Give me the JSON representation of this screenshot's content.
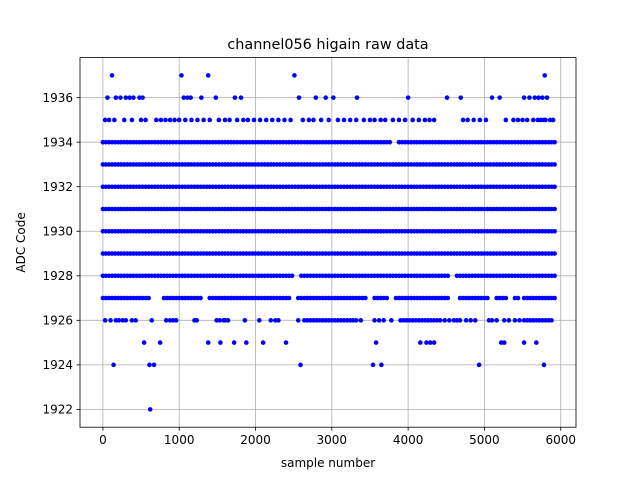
{
  "chart_data": {
    "type": "scatter",
    "title": "channel056 higain raw data",
    "xlabel": "sample number",
    "ylabel": "ADC Code",
    "xlim": [
      -300,
      6200
    ],
    "ylim": [
      1921.2,
      1937.8
    ],
    "x_ticks": [
      0,
      1000,
      2000,
      3000,
      4000,
      5000,
      6000
    ],
    "y_ticks": [
      1922,
      1924,
      1926,
      1928,
      1930,
      1932,
      1934,
      1936
    ],
    "grid": true,
    "marker_color": "#0000ff",
    "n_samples": 5925,
    "series": [
      {
        "values_by_level": {
          "1937": [
            120,
            1030,
            1380,
            2510,
            5790
          ],
          "1936": [
            60,
            170,
            230,
            300,
            350,
            400,
            480,
            520,
            1060,
            1110,
            1150,
            1290,
            1480,
            1730,
            1810,
            2570,
            2790,
            2920,
            3020,
            3330,
            4000,
            4510,
            4690,
            5100,
            5200,
            5520,
            5590,
            5660,
            5710,
            5760,
            5820
          ],
          "1935": [
            30,
            80,
            150,
            280,
            380,
            500,
            560,
            700,
            760,
            820,
            880,
            940,
            1000,
            1080,
            1160,
            1240,
            1320,
            1400,
            1520,
            1600,
            1660,
            1760,
            1840,
            1900,
            1980,
            2060,
            2140,
            2220,
            2300,
            2380,
            2460,
            2620,
            2700,
            2760,
            2860,
            2960,
            3080,
            3160,
            3240,
            3320,
            3420,
            3500,
            3560,
            3640,
            3700,
            3800,
            3880,
            3960,
            4060,
            4140,
            4220,
            4280,
            4340,
            4720,
            4780,
            4860,
            4940,
            5020,
            5280,
            5380,
            5440,
            5500,
            5560,
            5640,
            5700,
            5740,
            5780,
            5800,
            5860,
            5900
          ],
          "1926": [
            30,
            100,
            170,
            210,
            260,
            300,
            380,
            430,
            640,
            830,
            880,
            920,
            960,
            1200,
            1230,
            1490,
            1530,
            1580,
            1600,
            1640,
            1860,
            2050,
            2200,
            2260,
            2300,
            2560,
            2640,
            2680,
            2720,
            2760,
            2800,
            2840,
            2880,
            2920,
            2960,
            3000,
            3040,
            3080,
            3120,
            3160,
            3200,
            3240,
            3280,
            3320,
            3380,
            3560,
            3620,
            3680,
            3780,
            3900,
            3940,
            3980,
            4020,
            4060,
            4100,
            4140,
            4180,
            4220,
            4260,
            4300,
            4340,
            4380,
            4420,
            4480,
            4540,
            4600,
            4640,
            4680,
            4760,
            4820,
            4880,
            5060,
            5100,
            5160,
            5260,
            5320,
            5400,
            5460,
            5520,
            5560,
            5600,
            5640,
            5680,
            5720,
            5760,
            5800,
            5840,
            5880
          ],
          "1925": [
            540,
            750,
            1380,
            1540,
            1720,
            1880,
            2100,
            2400,
            3580,
            4160,
            4240,
            4290,
            4340,
            5220,
            5260,
            5520,
            5680
          ],
          "1924": [
            140,
            610,
            670,
            2590,
            3540,
            3650,
            4930,
            5780
          ],
          "1922": [
            620
          ]
        },
        "dense_levels": [
          1934,
          1933,
          1932,
          1931,
          1930,
          1929,
          1928,
          1927
        ],
        "dense_gaps": {
          "1934": [
            [
              3800,
              3840
            ]
          ],
          "1928": [
            [
              2500,
              2560
            ],
            [
              4560,
              4620
            ]
          ],
          "1927": [
            [
              640,
              760
            ],
            [
              1300,
              1380
            ],
            [
              2480,
              2540
            ],
            [
              3460,
              3520
            ],
            [
              3760,
              3820
            ],
            [
              4560,
              4660
            ],
            [
              5060,
              5120
            ],
            [
              5320,
              5360
            ],
            [
              5460,
              5500
            ]
          ]
        }
      }
    ]
  }
}
